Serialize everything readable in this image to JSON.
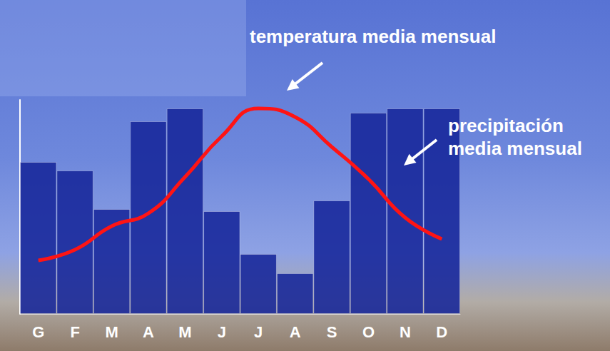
{
  "chart_data": {
    "type": "bar",
    "categories": [
      "G",
      "F",
      "M",
      "A",
      "M",
      "J",
      "J",
      "A",
      "S",
      "O",
      "N",
      "D"
    ],
    "ylim": [
      0,
      100
    ],
    "tick_labels": "x",
    "grid": false,
    "series": [
      {
        "name": "precipitación media mensual",
        "type": "bar",
        "color": "#16259a",
        "values": [
          71,
          67,
          49,
          90,
          96,
          48,
          28,
          19,
          53,
          94,
          96,
          96
        ]
      },
      {
        "name": "temperatura media mensual",
        "type": "line",
        "color": "#ff1414",
        "marker": "none",
        "line_style": "solid",
        "values": [
          25,
          30,
          41,
          47,
          64,
          83,
          96,
          92,
          78,
          63,
          45,
          35
        ]
      }
    ]
  }
}
